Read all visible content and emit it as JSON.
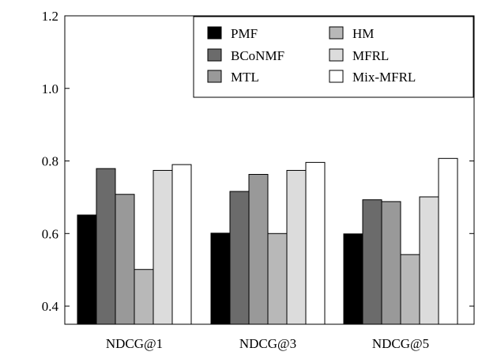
{
  "chart_data": {
    "type": "bar",
    "title": "",
    "xlabel": "",
    "ylabel": "",
    "categories": [
      "NDCG@1",
      "NDCG@3",
      "NDCG@5"
    ],
    "ylim": [
      0.35,
      1.2
    ],
    "yticks": [
      "0.4",
      "0.6",
      "0.8",
      "1.0",
      "1.2"
    ],
    "grid": false,
    "legend_position": "top-right",
    "series": [
      {
        "name": "PMF",
        "color": "#000000",
        "values": [
          0.651,
          0.601,
          0.599
        ]
      },
      {
        "name": "BCoNMF",
        "color": "#6b6b6b",
        "values": [
          0.779,
          0.716,
          0.693
        ]
      },
      {
        "name": "MTL",
        "color": "#999999",
        "values": [
          0.708,
          0.763,
          0.688
        ]
      },
      {
        "name": "HM",
        "color": "#b8b8b8",
        "values": [
          0.501,
          0.6,
          0.542
        ]
      },
      {
        "name": "MFRL",
        "color": "#dcdcdc",
        "values": [
          0.774,
          0.774,
          0.701
        ]
      },
      {
        "name": "Mix-MFRL",
        "color": "#ffffff",
        "values": [
          0.79,
          0.796,
          0.807
        ]
      }
    ]
  }
}
